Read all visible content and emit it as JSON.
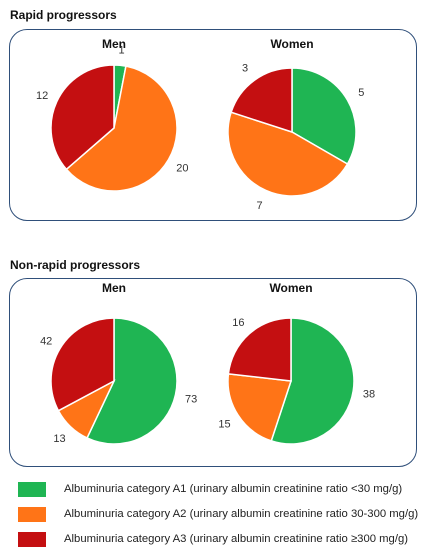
{
  "colors": {
    "A1": "#1fb553",
    "A2": "#ff7417",
    "A3": "#c40f11"
  },
  "legend": [
    {
      "key": "A1",
      "label": "Albuminuria category A1 (urinary albumin creatinine ratio <30 mg/g)"
    },
    {
      "key": "A2",
      "label": "Albuminuria category A2 (urinary albumin creatinine ratio 30-300 mg/g)"
    },
    {
      "key": "A3",
      "label": "Albuminuria category A3 (urinary albumin creatinine ratio ≥300 mg/g)"
    }
  ],
  "sections": [
    {
      "title": "Rapid progressors"
    },
    {
      "title": "Non-rapid progressors"
    }
  ],
  "chart_data": [
    {
      "type": "pie",
      "panel": "Rapid progressors",
      "title": "Men",
      "categories": [
        "A1",
        "A2",
        "A3"
      ],
      "values": [
        1,
        20,
        12
      ]
    },
    {
      "type": "pie",
      "panel": "Rapid progressors",
      "title": "Women",
      "categories": [
        "A1",
        "A2",
        "A3"
      ],
      "values": [
        5,
        7,
        3
      ]
    },
    {
      "type": "pie",
      "panel": "Non-rapid progressors",
      "title": "Men",
      "categories": [
        "A1",
        "A2",
        "A3"
      ],
      "values": [
        73,
        13,
        42
      ]
    },
    {
      "type": "pie",
      "panel": "Non-rapid progressors",
      "title": "Women",
      "categories": [
        "A1",
        "A2",
        "A3"
      ],
      "values": [
        38,
        15,
        16
      ]
    }
  ]
}
